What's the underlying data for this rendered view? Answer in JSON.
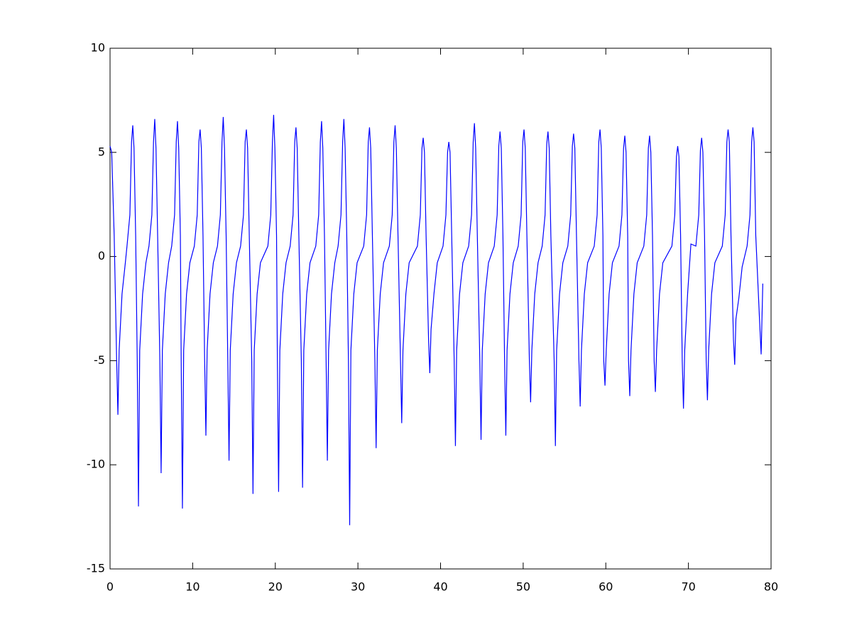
{
  "chart_data": {
    "type": "line",
    "color": "#0000ff",
    "xlim": [
      0,
      80
    ],
    "ylim": [
      -15,
      10
    ],
    "xticks": [
      0,
      10,
      20,
      30,
      40,
      50,
      60,
      70,
      80
    ],
    "yticks": [
      -15,
      -10,
      -5,
      0,
      5,
      10
    ],
    "x": [
      0,
      0.2,
      0.5,
      0.8,
      0.95,
      1.1,
      1.45,
      1.85,
      2.05,
      2.4,
      2.6,
      2.75,
      2.9,
      3.1,
      3.29,
      3.44,
      3.59,
      3.94,
      4.34,
      4.71,
      5.06,
      5.26,
      5.41,
      5.56,
      5.76,
      6.03,
      6.18,
      6.33,
      6.68,
      7.08,
      7.46,
      7.81,
      8.01,
      8.16,
      8.31,
      8.51,
      8.61,
      8.76,
      8.91,
      9.26,
      9.66,
      10.2,
      10.55,
      10.75,
      10.9,
      11.05,
      11.25,
      11.45,
      11.6,
      11.75,
      12.1,
      12.5,
      13.0,
      13.35,
      13.55,
      13.7,
      13.85,
      14.05,
      14.25,
      14.4,
      14.55,
      14.9,
      15.3,
      15.8,
      16.15,
      16.35,
      16.5,
      16.65,
      16.85,
      17.15,
      17.3,
      17.45,
      17.8,
      18.2,
      19.1,
      19.45,
      19.65,
      19.8,
      19.95,
      20.15,
      20.25,
      20.4,
      20.55,
      20.9,
      21.3,
      21.8,
      22.15,
      22.35,
      22.5,
      22.65,
      22.85,
      23.15,
      23.3,
      23.45,
      23.8,
      24.2,
      24.9,
      25.25,
      25.45,
      25.6,
      25.75,
      25.95,
      26.15,
      26.3,
      26.45,
      26.8,
      27.2,
      27.6,
      27.95,
      28.15,
      28.3,
      28.45,
      28.65,
      28.85,
      29.0,
      29.15,
      29.5,
      29.9,
      30.7,
      31.05,
      31.25,
      31.4,
      31.55,
      31.75,
      32.05,
      32.2,
      32.35,
      32.7,
      33.1,
      33.8,
      34.15,
      34.35,
      34.5,
      34.65,
      34.85,
      35.15,
      35.3,
      35.45,
      35.8,
      36.2,
      37.2,
      37.55,
      37.75,
      37.9,
      38.05,
      38.25,
      38.55,
      38.7,
      38.85,
      39.2,
      39.6,
      40.3,
      40.65,
      40.85,
      41.0,
      41.15,
      41.35,
      41.65,
      41.8,
      41.95,
      42.3,
      42.7,
      43.4,
      43.75,
      43.95,
      44.1,
      44.25,
      44.45,
      44.75,
      44.9,
      45.05,
      45.4,
      45.8,
      46.5,
      46.85,
      47.05,
      47.2,
      47.35,
      47.55,
      47.75,
      47.9,
      48.05,
      48.4,
      48.8,
      49.4,
      49.75,
      49.95,
      50.1,
      50.25,
      50.45,
      50.75,
      50.9,
      51.05,
      51.4,
      51.8,
      52.3,
      52.65,
      52.85,
      53.0,
      53.15,
      53.35,
      53.75,
      53.9,
      54.05,
      54.4,
      54.8,
      55.4,
      55.75,
      55.95,
      56.1,
      56.25,
      56.45,
      56.75,
      56.9,
      57.05,
      57.4,
      57.8,
      58.6,
      58.95,
      59.15,
      59.3,
      59.45,
      59.65,
      59.75,
      59.9,
      60.05,
      60.4,
      60.8,
      61.6,
      61.95,
      62.15,
      62.3,
      62.45,
      62.65,
      62.75,
      62.9,
      63.05,
      63.4,
      63.8,
      64.6,
      64.95,
      65.15,
      65.3,
      65.45,
      65.65,
      65.85,
      66.0,
      66.15,
      66.5,
      66.9,
      68.0,
      68.35,
      68.55,
      68.7,
      68.85,
      69.05,
      69.25,
      69.4,
      69.55,
      69.9,
      70.3,
      70.9,
      71.25,
      71.45,
      71.6,
      71.75,
      71.95,
      72.15,
      72.3,
      72.45,
      72.8,
      73.2,
      74.1,
      74.45,
      74.65,
      74.8,
      74.95,
      75.15,
      75.45,
      75.6,
      75.75,
      76.1,
      76.5,
      77.1,
      77.45,
      77.65,
      77.8,
      77.95,
      78.15,
      78.6,
      78.8,
      79.0
    ],
    "values": [
      5.3,
      5.0,
      1,
      -5,
      -7.6,
      -4.5,
      -1.8,
      -0.3,
      0.5,
      2,
      5.5,
      6.3,
      5.2,
      1,
      -5,
      -12,
      -4.5,
      -1.8,
      -0.3,
      0.5,
      2,
      5.5,
      6.6,
      5.2,
      1,
      -5,
      -10.4,
      -4.5,
      -1.8,
      -0.3,
      0.5,
      2,
      5.5,
      6.5,
      5.2,
      1,
      -5,
      -12.1,
      -4.5,
      -1.8,
      -0.3,
      0.5,
      2,
      5.5,
      6.1,
      5.2,
      1,
      -5,
      -8.6,
      -4.5,
      -1.8,
      -0.3,
      0.5,
      2,
      5.5,
      6.7,
      5.2,
      1,
      -5,
      -9.8,
      -4.5,
      -1.8,
      -0.3,
      0.5,
      2,
      5.5,
      6.1,
      5.2,
      1,
      -5,
      -11.4,
      -4.5,
      -1.8,
      -0.3,
      0.5,
      2,
      5.5,
      6.8,
      5.2,
      1,
      -5,
      -11.3,
      -4.5,
      -1.8,
      -0.3,
      0.5,
      2,
      5.5,
      6.2,
      5.2,
      1,
      -5,
      -11.1,
      -4.5,
      -1.8,
      -0.3,
      0.5,
      2,
      5.5,
      6.5,
      5.2,
      1,
      -5,
      -9.8,
      -4.5,
      -1.8,
      -0.3,
      0.5,
      2,
      5.5,
      6.6,
      5.2,
      1,
      -5,
      -12.9,
      -4.5,
      -1.8,
      -0.3,
      0.5,
      2,
      5.5,
      6.2,
      5.2,
      1,
      -5,
      -9.2,
      -4.5,
      -1.8,
      -0.3,
      0.5,
      2,
      5.5,
      6.3,
      5.2,
      1,
      -5,
      -8.0,
      -4.5,
      -1.8,
      -0.3,
      0.5,
      2,
      5.2,
      5.7,
      5.0,
      1,
      -4,
      -5.6,
      -3.5,
      -1.8,
      -0.3,
      0.5,
      2,
      5.0,
      5.5,
      5.0,
      1,
      -5,
      -9.1,
      -4.5,
      -1.8,
      -0.3,
      0.5,
      2,
      5.5,
      6.4,
      5.2,
      1,
      -5,
      -8.8,
      -4.5,
      -1.8,
      -0.3,
      0.5,
      2,
      5.3,
      6.0,
      5.2,
      1,
      -5,
      -8.6,
      -4.5,
      -1.8,
      -0.3,
      0.5,
      2,
      5.5,
      6.1,
      5.2,
      1,
      -5,
      -7.0,
      -4.5,
      -1.8,
      -0.3,
      0.5,
      2,
      5.4,
      6.0,
      5.2,
      1,
      -5,
      -9.1,
      -4.5,
      -1.8,
      -0.3,
      0.5,
      2,
      5.3,
      5.9,
      5.2,
      1,
      -5,
      -7.2,
      -4.5,
      -1.8,
      -0.3,
      0.5,
      2,
      5.5,
      6.1,
      5.2,
      1,
      -5,
      -6.2,
      -4.5,
      -1.8,
      -0.3,
      0.5,
      2,
      5.2,
      5.8,
      5.0,
      1,
      -5,
      -6.7,
      -4.5,
      -1.8,
      -0.3,
      0.5,
      2,
      5.2,
      5.8,
      5.0,
      1,
      -5,
      -6.5,
      -4.5,
      -1.8,
      -0.3,
      0.5,
      2,
      4.8,
      5.3,
      4.8,
      1,
      -5,
      -7.3,
      -4.5,
      -1.8,
      0.6,
      0.5,
      2,
      5.1,
      5.7,
      5.0,
      1,
      -5,
      -6.9,
      -4.5,
      -1.8,
      -0.3,
      0.5,
      2,
      5.5,
      6.1,
      5.5,
      1,
      -4,
      -5.2,
      -3,
      -2,
      -0.5,
      0.5,
      2,
      5.5,
      6.2,
      5.5,
      1,
      -3,
      -4.7,
      -1.3
    ]
  }
}
